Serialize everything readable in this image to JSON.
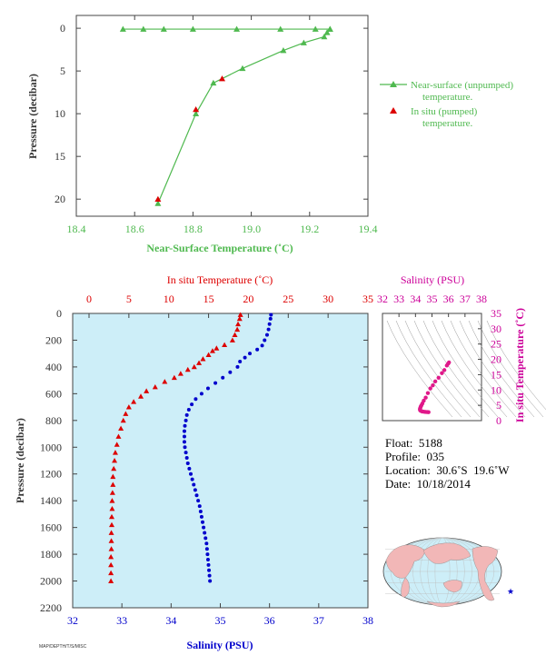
{
  "colors": {
    "green": "#4fb94f",
    "red": "#dd0000",
    "blue": "#0000cc",
    "magenta": "#cc0099",
    "axis_dark": "#333333",
    "profile_bg": "#cdeef8",
    "map_ocean": "#cdeef8",
    "map_land": "#f2b7b7"
  },
  "chart_data": [
    {
      "id": "top",
      "type": "line",
      "xlabel": "Near-Surface Temperature (˚C)",
      "ylabel": "Pressure (decibar)",
      "xlim": [
        18.4,
        19.4
      ],
      "ylim": [
        22,
        -1.5
      ],
      "xticks": [
        "18.4",
        "18.6",
        "18.8",
        "19.0",
        "19.2",
        "19.4"
      ],
      "xtick_values": [
        18.4,
        18.6,
        18.8,
        19.0,
        19.2,
        19.4
      ],
      "yticks": [
        "0",
        "5",
        "10",
        "15",
        "20"
      ],
      "ytick_values": [
        0,
        5,
        10,
        15,
        20
      ],
      "series": [
        {
          "name": "Near-surface (unpumped) temperature.",
          "marker": "triangle",
          "line": true,
          "points": [
            [
              18.56,
              0.1
            ],
            [
              18.63,
              0.1
            ],
            [
              18.7,
              0.1
            ],
            [
              18.8,
              0.1
            ],
            [
              18.95,
              0.1
            ],
            [
              19.1,
              0.1
            ],
            [
              19.22,
              0.1
            ],
            [
              19.27,
              0.1
            ],
            [
              19.27,
              0.1
            ],
            [
              19.26,
              0.5
            ],
            [
              19.25,
              1.0
            ],
            [
              19.18,
              1.7
            ],
            [
              19.11,
              2.6
            ],
            [
              18.97,
              4.7
            ],
            [
              18.87,
              6.4
            ],
            [
              18.81,
              10.0
            ],
            [
              18.68,
              20.5
            ]
          ]
        },
        {
          "name": "In situ (pumped) temperature.",
          "marker": "triangle",
          "line": false,
          "points": [
            [
              18.9,
              5.9
            ],
            [
              18.81,
              9.5
            ],
            [
              18.68,
              20.0
            ]
          ]
        }
      ],
      "legend": "right"
    },
    {
      "id": "profile",
      "type": "scatter",
      "ylabel": "Pressure (decibar)",
      "ylim": [
        2200,
        0
      ],
      "yticks": [
        "0",
        "200",
        "400",
        "600",
        "800",
        "1000",
        "1200",
        "1400",
        "1600",
        "1800",
        "2000",
        "2200"
      ],
      "ytick_values": [
        0,
        200,
        400,
        600,
        800,
        1000,
        1200,
        1400,
        1600,
        1800,
        2000,
        2200
      ],
      "temperature_axis": {
        "label": "In situ Temperature (˚C)",
        "range": [
          0,
          35
        ],
        "ticks": [
          "0",
          "5",
          "10",
          "15",
          "20",
          "25",
          "30",
          "35"
        ],
        "tick_values": [
          0,
          5,
          10,
          15,
          20,
          25,
          30,
          35
        ]
      },
      "salinity_axis": {
        "label": "Salinity (PSU)",
        "range": [
          32,
          38
        ],
        "ticks": [
          "32",
          "33",
          "34",
          "35",
          "36",
          "37",
          "38"
        ],
        "tick_values": [
          32,
          33,
          34,
          35,
          36,
          37,
          38
        ]
      },
      "series": [
        {
          "name": "In situ Temperature (˚C)",
          "axis": "temperature",
          "marker": "triangle",
          "points": [
            [
              19.0,
              10
            ],
            [
              18.9,
              40
            ],
            [
              18.7,
              80
            ],
            [
              18.6,
              120
            ],
            [
              18.3,
              160
            ],
            [
              18.0,
              200
            ],
            [
              17.0,
              235
            ],
            [
              16.0,
              260
            ],
            [
              15.5,
              280
            ],
            [
              15.0,
              310
            ],
            [
              14.3,
              340
            ],
            [
              13.8,
              370
            ],
            [
              13.2,
              400
            ],
            [
              12.4,
              420
            ],
            [
              11.5,
              450
            ],
            [
              10.7,
              480
            ],
            [
              9.5,
              510
            ],
            [
              8.3,
              550
            ],
            [
              7.2,
              580
            ],
            [
              6.5,
              620
            ],
            [
              5.6,
              660
            ],
            [
              5.0,
              700
            ],
            [
              4.6,
              750
            ],
            [
              4.3,
              800
            ],
            [
              4.0,
              860
            ],
            [
              3.7,
              920
            ],
            [
              3.5,
              980
            ],
            [
              3.3,
              1040
            ],
            [
              3.2,
              1100
            ],
            [
              3.1,
              1160
            ],
            [
              3.0,
              1220
            ],
            [
              3.0,
              1280
            ],
            [
              2.95,
              1340
            ],
            [
              2.9,
              1400
            ],
            [
              2.9,
              1460
            ],
            [
              2.85,
              1520
            ],
            [
              2.85,
              1580
            ],
            [
              2.8,
              1640
            ],
            [
              2.8,
              1700
            ],
            [
              2.8,
              1760
            ],
            [
              2.75,
              1820
            ],
            [
              2.75,
              1880
            ],
            [
              2.75,
              1940
            ],
            [
              2.75,
              2000
            ]
          ]
        },
        {
          "name": "Salinity (PSU)",
          "axis": "salinity",
          "marker": "dot",
          "points": [
            [
              36.03,
              10
            ],
            [
              36.02,
              40
            ],
            [
              36.0,
              80
            ],
            [
              35.98,
              120
            ],
            [
              35.95,
              160
            ],
            [
              35.9,
              200
            ],
            [
              35.85,
              240
            ],
            [
              35.75,
              270
            ],
            [
              35.6,
              300
            ],
            [
              35.5,
              330
            ],
            [
              35.4,
              360
            ],
            [
              35.35,
              400
            ],
            [
              35.2,
              440
            ],
            [
              35.05,
              480
            ],
            [
              34.9,
              520
            ],
            [
              34.75,
              560
            ],
            [
              34.62,
              600
            ],
            [
              34.5,
              640
            ],
            [
              34.42,
              680
            ],
            [
              34.36,
              720
            ],
            [
              34.32,
              760
            ],
            [
              34.3,
              800
            ],
            [
              34.28,
              840
            ],
            [
              34.27,
              880
            ],
            [
              34.27,
              920
            ],
            [
              34.27,
              960
            ],
            [
              34.28,
              1000
            ],
            [
              34.3,
              1040
            ],
            [
              34.32,
              1080
            ],
            [
              34.34,
              1120
            ],
            [
              34.37,
              1160
            ],
            [
              34.4,
              1200
            ],
            [
              34.43,
              1240
            ],
            [
              34.46,
              1280
            ],
            [
              34.49,
              1320
            ],
            [
              34.52,
              1360
            ],
            [
              34.55,
              1400
            ],
            [
              34.58,
              1440
            ],
            [
              34.6,
              1480
            ],
            [
              34.62,
              1520
            ],
            [
              34.64,
              1560
            ],
            [
              34.66,
              1600
            ],
            [
              34.68,
              1640
            ],
            [
              34.7,
              1680
            ],
            [
              34.72,
              1720
            ],
            [
              34.73,
              1760
            ],
            [
              34.74,
              1800
            ],
            [
              34.75,
              1840
            ],
            [
              34.76,
              1880
            ],
            [
              34.77,
              1920
            ],
            [
              34.78,
              1960
            ],
            [
              34.79,
              2000
            ]
          ]
        }
      ]
    },
    {
      "id": "ts",
      "type": "scatter",
      "xlabel": "Salinity (PSU)",
      "ylabel": "In situ Temperature (˚C)",
      "xlim": [
        32,
        38
      ],
      "ylim": [
        0,
        35
      ],
      "xticks": [
        "32",
        "33",
        "34",
        "35",
        "36",
        "37",
        "38"
      ],
      "xtick_values": [
        32,
        33,
        34,
        35,
        36,
        37,
        38
      ],
      "yticks": [
        "0",
        "5",
        "10",
        "15",
        "20",
        "25",
        "30",
        "35"
      ],
      "ytick_values": [
        0,
        5,
        10,
        15,
        20,
        25,
        30,
        35
      ],
      "series": [
        {
          "name": "T-S",
          "marker": "dot",
          "points": [
            [
              36.03,
              19.0
            ],
            [
              35.98,
              18.6
            ],
            [
              35.9,
              18.0
            ],
            [
              35.75,
              16.5
            ],
            [
              35.6,
              15.5
            ],
            [
              35.4,
              14.0
            ],
            [
              35.2,
              12.8
            ],
            [
              35.05,
              11.5
            ],
            [
              34.9,
              10.5
            ],
            [
              34.75,
              9.0
            ],
            [
              34.62,
              7.5
            ],
            [
              34.5,
              6.5
            ],
            [
              34.42,
              5.6
            ],
            [
              34.36,
              5.0
            ],
            [
              34.32,
              4.6
            ],
            [
              34.3,
              4.3
            ],
            [
              34.28,
              4.0
            ],
            [
              34.27,
              3.7
            ],
            [
              34.28,
              3.4
            ],
            [
              34.32,
              3.2
            ],
            [
              34.4,
              3.0
            ],
            [
              34.5,
              2.9
            ],
            [
              34.6,
              2.85
            ],
            [
              34.7,
              2.8
            ],
            [
              34.79,
              2.75
            ]
          ]
        }
      ]
    }
  ],
  "info": {
    "float": "Float:  5188",
    "profile": "Profile:  035",
    "location": "Location:  30.6˚S  19.6˚W",
    "date": "Date:  10/18/2014"
  },
  "map": {
    "float_marker": "★",
    "float_lon": -19.6,
    "float_lat": -30.6
  },
  "footer": "MAP/DEPTH/T/S/MISC"
}
